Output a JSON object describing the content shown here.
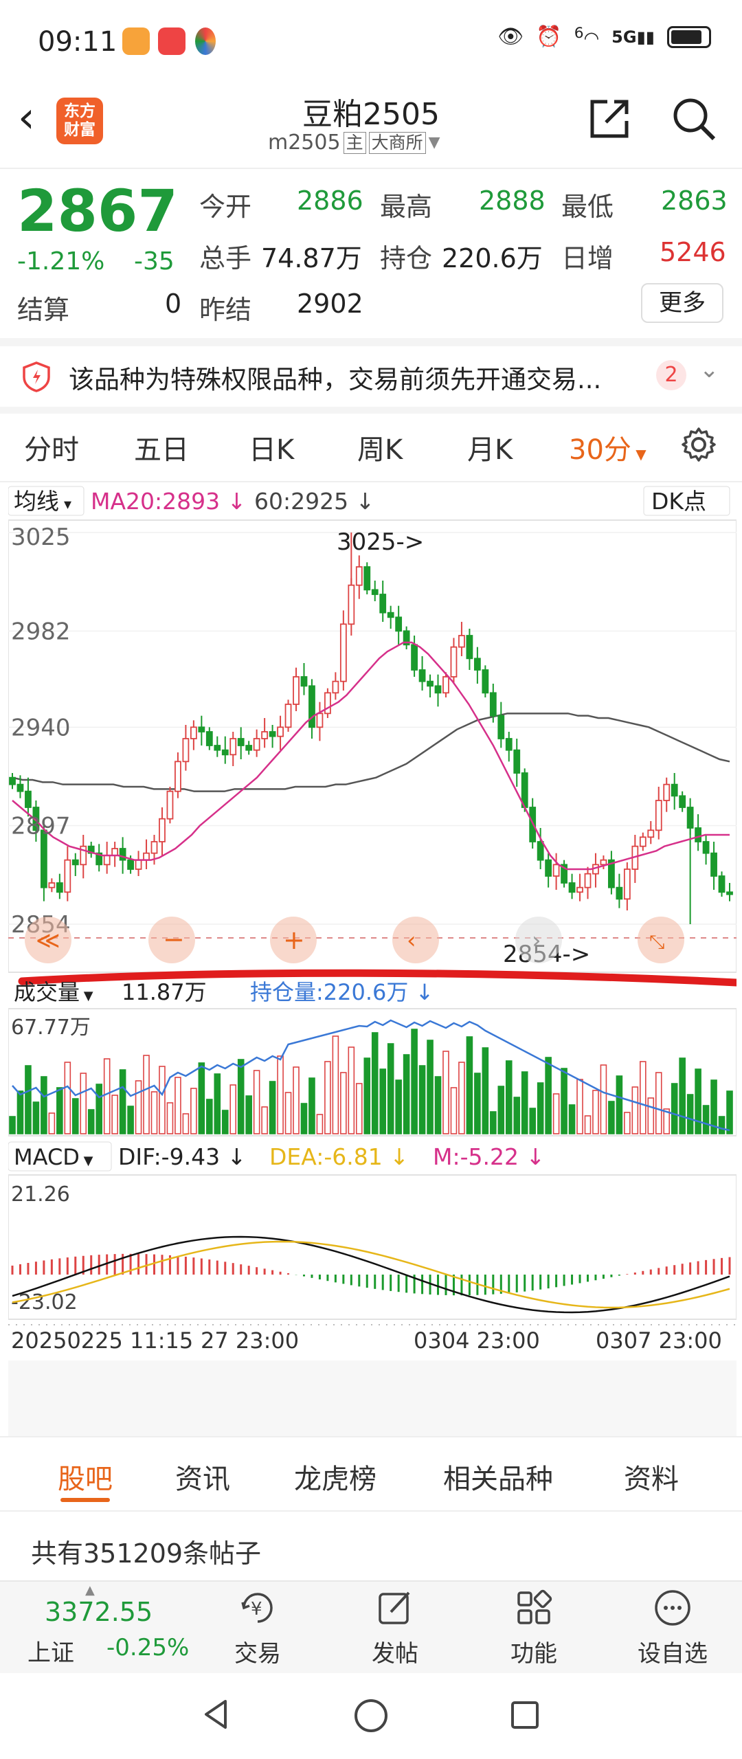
{
  "status_bar": {
    "time": "09:11",
    "signal": "5G",
    "wifi_badge": "6"
  },
  "header": {
    "title": "豆粕2505",
    "code": "m2505",
    "tag_main": "主",
    "exchange": "大商所",
    "logo_text": "东方财富"
  },
  "quote": {
    "price": "2867",
    "change_pct": "-1.21%",
    "change": "-35",
    "open_label": "今开",
    "open": "2886",
    "high_label": "最高",
    "high": "2888",
    "low_label": "最低",
    "low": "2863",
    "volume_label": "总手",
    "volume": "74.87万",
    "oi_label": "持仓",
    "oi": "220.6万",
    "daily_inc_label": "日增",
    "daily_inc": "5246",
    "settle_label": "结算",
    "settle": "0",
    "prev_settle_label": "昨结",
    "prev_settle": "2902",
    "more": "更多"
  },
  "notice": {
    "text": "该品种为特殊权限品种，交易前须先开通交易...",
    "count": "2"
  },
  "period_tabs": [
    "分时",
    "五日",
    "日K",
    "周K",
    "月K",
    "30分"
  ],
  "chart_header": {
    "ma_selector": "均线",
    "ma20": "MA20:2893",
    "ma60": "60:2925",
    "dk": "DK点"
  },
  "volume_header": {
    "selector": "成交量",
    "vol": "11.87万",
    "oi_label": "持仓量:220.6万",
    "max": "67.77万"
  },
  "macd_header": {
    "selector": "MACD",
    "dif": "DIF:-9.43",
    "dea": "DEA:-6.81",
    "m": "M:-5.22",
    "max": "21.26",
    "min": "-23.02"
  },
  "time_axis": [
    "20250225 11:15",
    "27 23:00",
    "0304 23:00",
    "0307 23:00"
  ],
  "chart_data": {
    "type": "candlestick",
    "y_ticks": [
      "3025",
      "2982",
      "2940",
      "2897",
      "2854"
    ],
    "ylim": [
      2854,
      3025
    ],
    "high_marker": "3025->",
    "low_marker": "2854->",
    "closes": [
      2915,
      2912,
      2905,
      2895,
      2870,
      2872,
      2868,
      2882,
      2880,
      2888,
      2885,
      2880,
      2884,
      2887,
      2882,
      2878,
      2882,
      2885,
      2890,
      2900,
      2912,
      2925,
      2935,
      2940,
      2938,
      2932,
      2930,
      2928,
      2935,
      2932,
      2930,
      2935,
      2938,
      2936,
      2940,
      2950,
      2962,
      2958,
      2940,
      2946,
      2955,
      2960,
      2985,
      3002,
      3010,
      3000,
      2998,
      2990,
      2988,
      2982,
      2976,
      2965,
      2960,
      2958,
      2955,
      2962,
      2975,
      2980,
      2970,
      2965,
      2955,
      2945,
      2935,
      2930,
      2920,
      2905,
      2890,
      2882,
      2875,
      2880,
      2872,
      2868,
      2870,
      2876,
      2880,
      2882,
      2870,
      2865,
      2878,
      2888,
      2892,
      2895,
      2908,
      2915,
      2910,
      2905,
      2896,
      2890,
      2885,
      2875,
      2868,
      2867
    ],
    "ma20": [
      2908,
      2905,
      2902,
      2899,
      2895,
      2892,
      2890,
      2888,
      2887,
      2886,
      2885,
      2884,
      2884,
      2884,
      2883,
      2882,
      2882,
      2882,
      2883,
      2885,
      2887,
      2890,
      2893,
      2897,
      2900,
      2903,
      2906,
      2909,
      2912,
      2915,
      2918,
      2922,
      2926,
      2930,
      2934,
      2938,
      2942,
      2945,
      2947,
      2949,
      2951,
      2954,
      2958,
      2962,
      2966,
      2970,
      2973,
      2975,
      2977,
      2977,
      2975,
      2972,
      2968,
      2964,
      2960,
      2955,
      2950,
      2944,
      2938,
      2932,
      2925,
      2918,
      2911,
      2904,
      2897,
      2890,
      2884,
      2880,
      2878,
      2878,
      2878,
      2878,
      2879,
      2880,
      2881,
      2882,
      2883,
      2884,
      2885,
      2886,
      2888,
      2889,
      2890,
      2891,
      2892,
      2893,
      2893,
      2893,
      2893
    ],
    "ma60": [
      2918,
      2917,
      2917,
      2916,
      2916,
      2915,
      2915,
      2915,
      2915,
      2915,
      2915,
      2914,
      2914,
      2914,
      2913,
      2913,
      2913,
      2913,
      2912,
      2912,
      2912,
      2912,
      2913,
      2913,
      2913,
      2913,
      2913,
      2913,
      2914,
      2914,
      2914,
      2914,
      2915,
      2915,
      2916,
      2917,
      2918,
      2920,
      2922,
      2924,
      2927,
      2930,
      2933,
      2936,
      2939,
      2941,
      2943,
      2944,
      2945,
      2946,
      2946,
      2946,
      2946,
      2946,
      2946,
      2946,
      2945,
      2945,
      2944,
      2944,
      2943,
      2942,
      2941,
      2940,
      2938,
      2936,
      2934,
      2932,
      2930,
      2928,
      2926,
      2925
    ]
  }
}
